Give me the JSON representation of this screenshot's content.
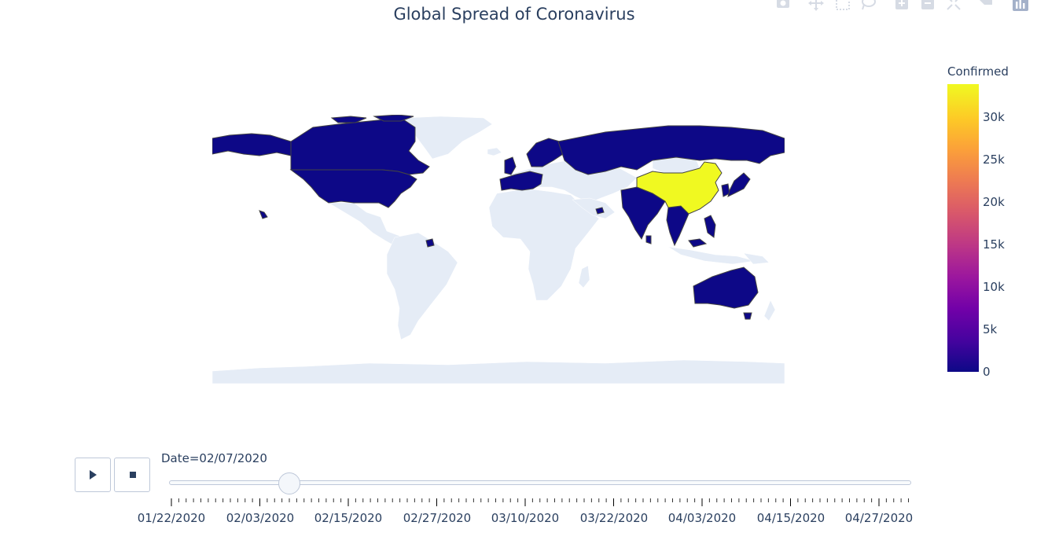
{
  "title": "Global Spread of Coronavirus",
  "colorbar": {
    "title": "Confirmed",
    "ticks": [
      "0",
      "5k",
      "10k",
      "15k",
      "20k",
      "25k",
      "30k"
    ]
  },
  "slider": {
    "current_label": "Date=02/07/2020",
    "tick_labels": [
      "01/22/2020",
      "02/03/2020",
      "02/15/2020",
      "02/27/2020",
      "03/10/2020",
      "03/22/2020",
      "04/03/2020",
      "04/15/2020",
      "04/27/2020"
    ]
  },
  "controls": {
    "play_icon": "play-icon",
    "stop_icon": "stop-icon"
  },
  "chart_data": {
    "type": "choropleth",
    "title": "Global Spread of Coronavirus",
    "frame": "02/07/2020",
    "colorscale": "plasma",
    "color_range": [
      0,
      34000
    ],
    "colorbar_title": "Confirmed",
    "colors": {
      "no_data": "#e5ecf6",
      "low": "#0d0887",
      "high": "#f0f921",
      "border": "#444444"
    },
    "countries_with_cases_dark": [
      "Canada",
      "United States",
      "Russia",
      "United Kingdom",
      "France",
      "Germany",
      "Italy",
      "Spain",
      "Sweden",
      "Finland",
      "Belgium",
      "India",
      "Japan",
      "South Korea",
      "Vietnam",
      "Thailand",
      "Cambodia",
      "Malaysia",
      "Philippines",
      "Sri Lanka",
      "Nepal",
      "United Arab Emirates",
      "Singapore",
      "Australia"
    ],
    "countries_with_cases_high": {
      "China": 34000
    }
  }
}
